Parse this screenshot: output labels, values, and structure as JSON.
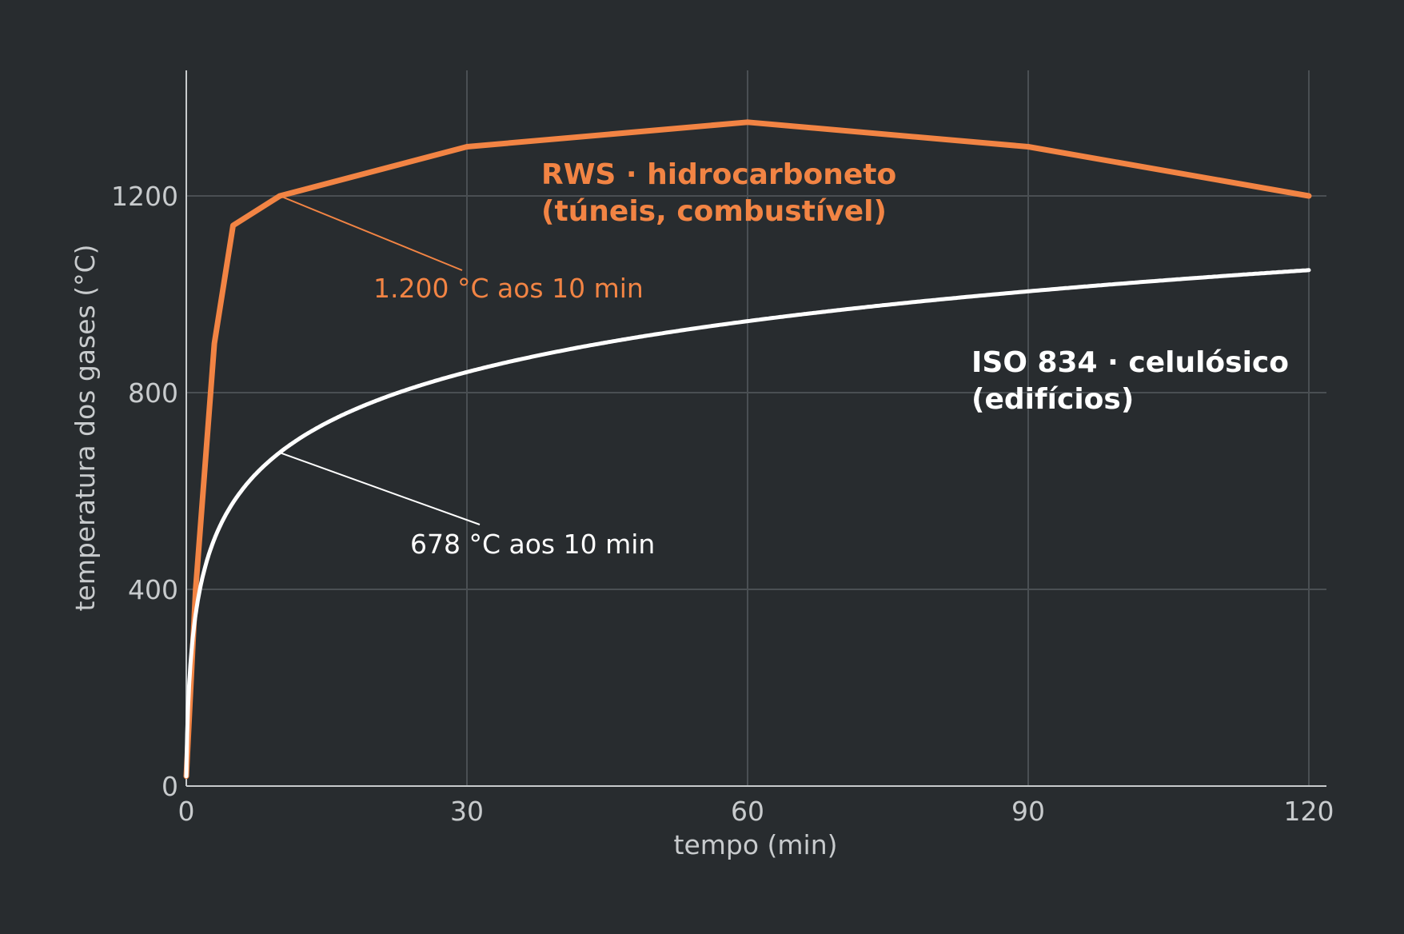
{
  "chart_data": {
    "type": "line",
    "title": "",
    "xlabel": "tempo (min)",
    "ylabel": "temperatura dos gases (°C)",
    "xlim": [
      0,
      122
    ],
    "ylim": [
      0,
      1450
    ],
    "x_ticks": [
      0,
      30,
      60,
      90,
      120
    ],
    "y_ticks": [
      0,
      400,
      800,
      1200
    ],
    "grid": true,
    "legend": "none",
    "series": [
      {
        "name": "RWS · hidrocarboneto\n(túneis, combustível)",
        "label_lines": [
          "RWS · hidrocarboneto",
          "(túneis, combustível)"
        ],
        "color": "#f28444",
        "kind": "points",
        "x": [
          0,
          1,
          3,
          5,
          10,
          30,
          60,
          90,
          120
        ],
        "y": [
          20,
          400,
          900,
          1140,
          1200,
          1300,
          1350,
          1300,
          1200
        ]
      },
      {
        "name": "ISO 834 · celulósico\n(edifícios)",
        "label_lines": [
          "ISO 834 · celulósico",
          "(edifícios)"
        ],
        "color": "#ffffff",
        "kind": "iso834",
        "x_range": [
          0,
          120
        ],
        "formula": "T = 20 + 345·log10(8t + 1)"
      }
    ],
    "annotations": [
      {
        "series": 0,
        "x": 10,
        "y": 1200,
        "text": "1.200 °C aos 10 min"
      },
      {
        "series": 1,
        "x": 10,
        "y": 678,
        "text": "678 °C aos 10 min"
      }
    ]
  }
}
